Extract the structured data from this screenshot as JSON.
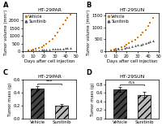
{
  "chart_data": [
    {
      "type": "scatter",
      "panel_label": "A",
      "title": "HT-29PAR",
      "xlabel": "Days after cell injection",
      "ylabel": "Tumor volume (mm³)",
      "x": [
        5,
        8,
        10,
        12,
        15,
        18,
        20,
        22,
        25,
        28,
        30,
        33,
        35,
        38,
        40,
        42,
        45
      ],
      "series": [
        {
          "name": "Vehicle",
          "color": "#e07b00",
          "marker": "square",
          "values": [
            60,
            80,
            100,
            150,
            200,
            280,
            380,
            500,
            650,
            820,
            1000,
            1250,
            1500,
            1750,
            2000,
            2200,
            2400
          ]
        },
        {
          "name": "Sunitinib",
          "color": "#555555",
          "marker": "triangle",
          "values": [
            50,
            60,
            65,
            70,
            80,
            100,
            110,
            120,
            130,
            145,
            155,
            165,
            175,
            185,
            195,
            210,
            225
          ]
        }
      ],
      "xlim": [
        0,
        50
      ],
      "xticks": [
        0,
        10,
        20,
        30,
        40,
        50
      ],
      "ylim": [
        0,
        2500
      ],
      "yticks": [
        0,
        500,
        1000,
        1500,
        2000
      ],
      "legend": "upper left"
    },
    {
      "type": "scatter",
      "panel_label": "B",
      "title": "HT-29SUN",
      "xlabel": "Days after cell injection",
      "ylabel": "Tumor volume (mm³)",
      "x": [
        5,
        8,
        10,
        12,
        15,
        18,
        20,
        22,
        25,
        28,
        30,
        33,
        35,
        38,
        40,
        42,
        45
      ],
      "series": [
        {
          "name": "Vehicle",
          "color": "#e07b00",
          "marker": "square",
          "values": [
            55,
            70,
            90,
            120,
            160,
            210,
            260,
            330,
            400,
            490,
            580,
            680,
            790,
            900,
            1050,
            1200,
            1400
          ]
        },
        {
          "name": "Sunitinib",
          "color": "#555555",
          "marker": "triangle",
          "values": [
            50,
            65,
            80,
            95,
            115,
            140,
            165,
            185,
            210,
            240,
            265,
            290,
            315,
            340,
            370,
            395,
            430
          ]
        }
      ],
      "xlim": [
        0,
        50
      ],
      "xticks": [
        0,
        10,
        20,
        30,
        40,
        50
      ],
      "ylim": [
        0,
        1600
      ],
      "yticks": [
        0,
        500,
        1000,
        1500
      ],
      "legend": "upper left"
    },
    {
      "type": "bar",
      "panel_label": "C",
      "title": "HT-29PAR",
      "ylabel": "Tumor mass (g)",
      "categories": [
        "Vehicle",
        "Sunitinib"
      ],
      "values": [
        0.47,
        0.2
      ],
      "errors": [
        0.03,
        0.02
      ],
      "colors": [
        "#444444",
        "#bbbbbb"
      ],
      "ylim": [
        0,
        0.6
      ],
      "yticks": [
        0.0,
        0.2,
        0.4,
        0.6
      ],
      "annotations": [
        "***"
      ]
    },
    {
      "type": "bar",
      "panel_label": "D",
      "title": "HT-29SUN",
      "ylabel": "Tumor mass (g)",
      "categories": [
        "Vehicle",
        "Sunitinib"
      ],
      "values": [
        0.68,
        0.55
      ],
      "errors": [
        0.05,
        0.07
      ],
      "colors": [
        "#444444",
        "#bbbbbb"
      ],
      "ylim": [
        0,
        0.9
      ],
      "yticks": [
        0.0,
        0.2,
        0.4,
        0.6,
        0.8
      ],
      "annotations": [
        "n.s"
      ]
    }
  ]
}
